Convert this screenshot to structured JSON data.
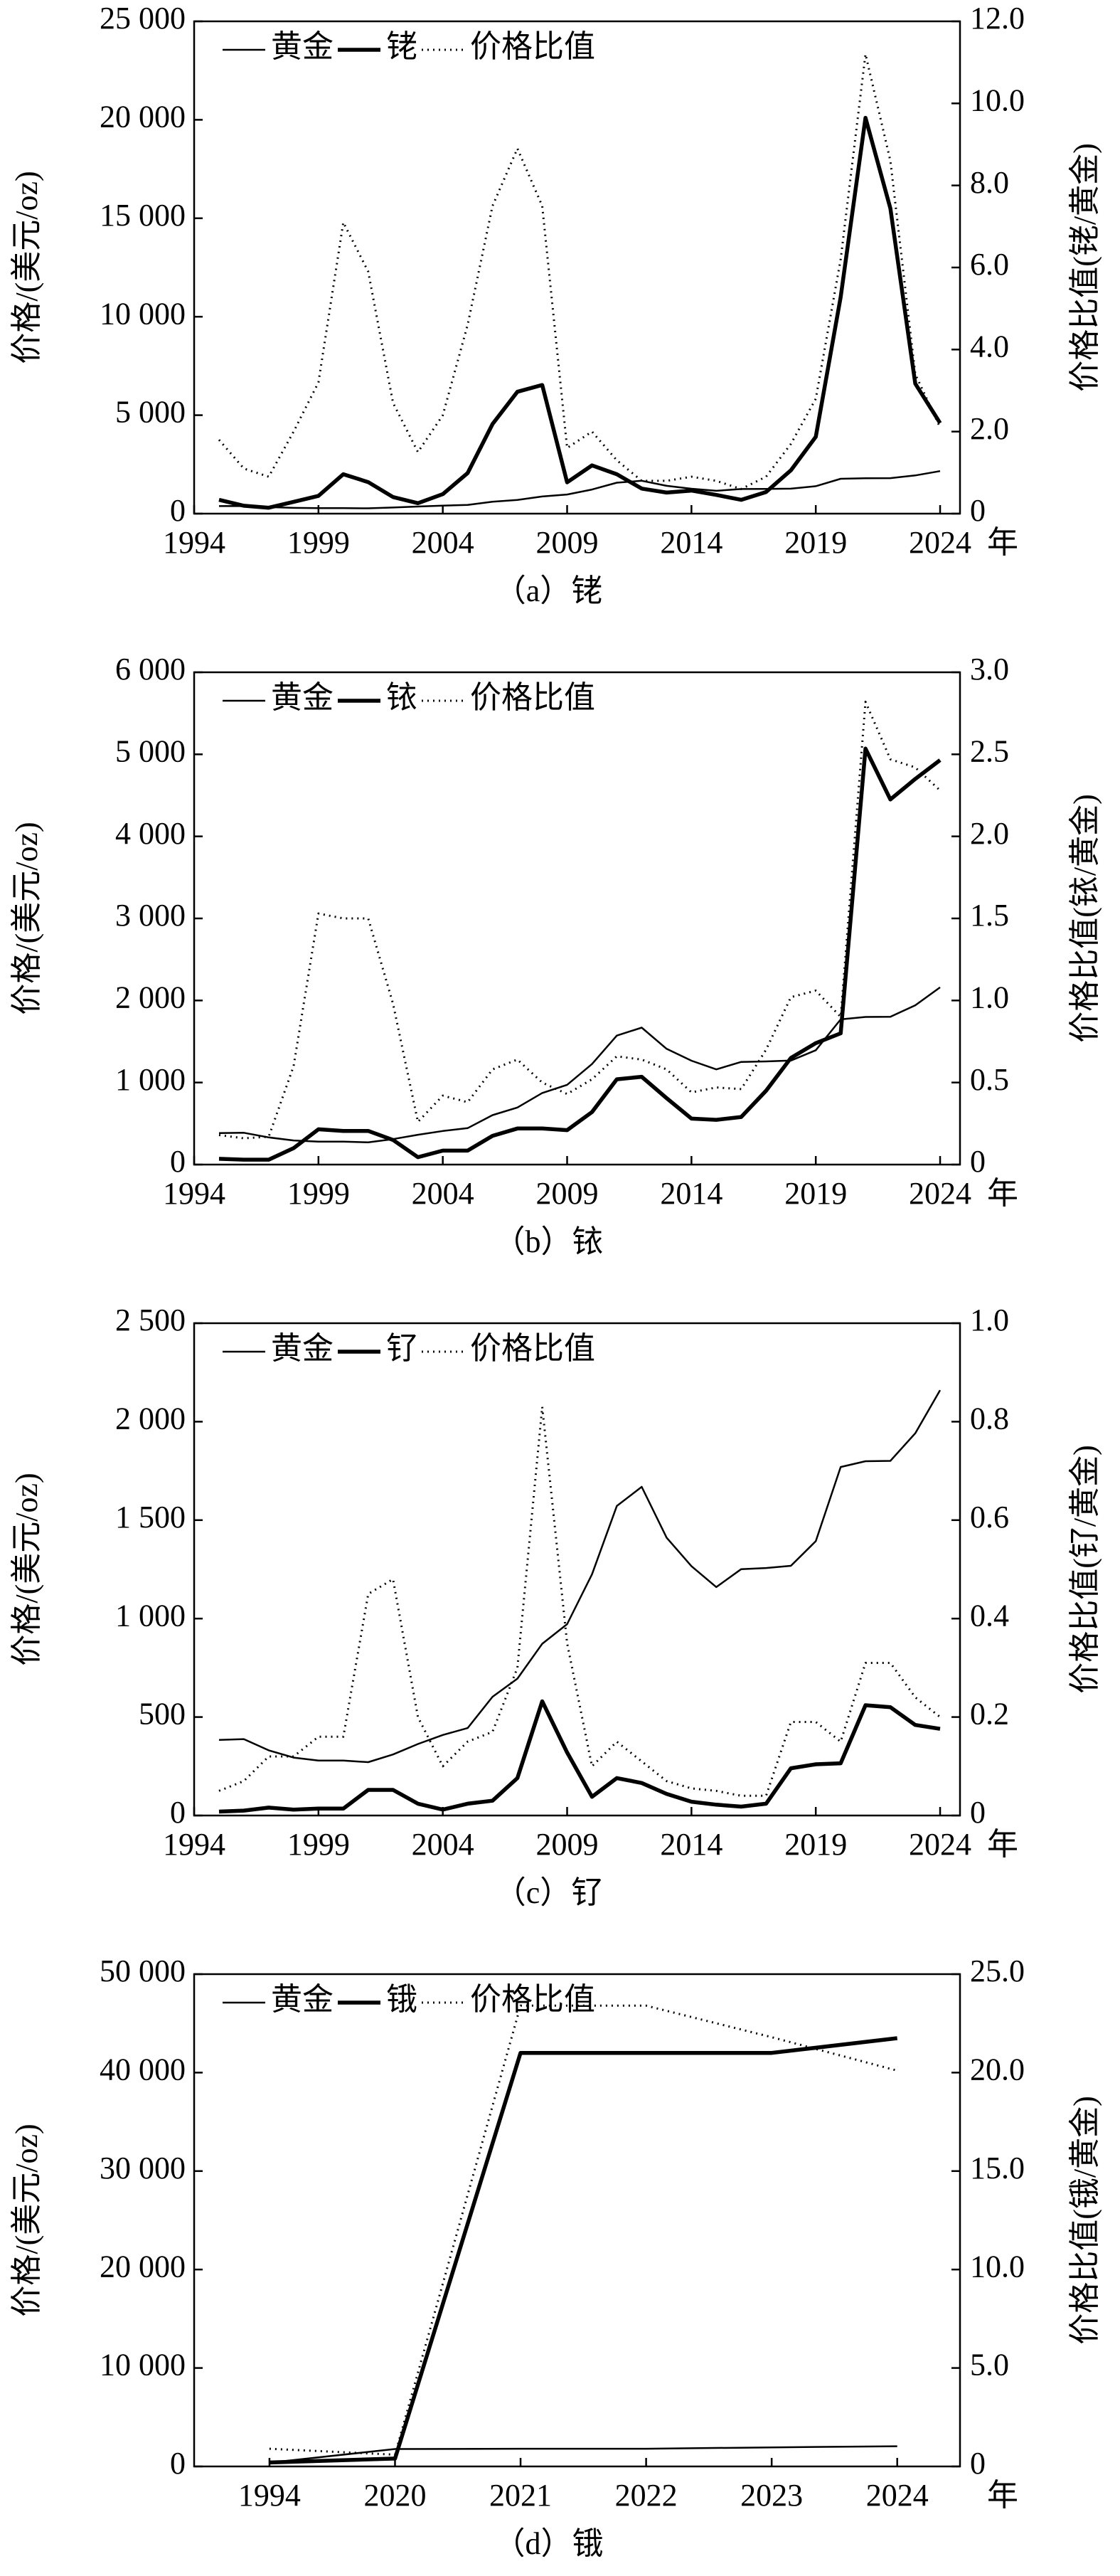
{
  "chart_data": [
    {
      "type": "line",
      "caption": "（a）铑",
      "xlabel": "年",
      "ylabel": "价格/(美元/oz)",
      "y2label": "价格比值(铑/黄金)",
      "x": [
        1995,
        1996,
        1997,
        1998,
        1999,
        2000,
        2001,
        2002,
        2003,
        2004,
        2005,
        2006,
        2007,
        2008,
        2009,
        2010,
        2011,
        2012,
        2013,
        2014,
        2015,
        2016,
        2017,
        2018,
        2019,
        2020,
        2021,
        2022,
        2023,
        2024
      ],
      "xlim": [
        1994,
        2024.8
      ],
      "xticks": [
        1994,
        1999,
        2004,
        2009,
        2014,
        2019,
        2024
      ],
      "ylim": [
        0,
        25000
      ],
      "yticks": [
        0,
        {
          "value": 5000,
          "label": "5 000"
        },
        {
          "value": 10000,
          "label": "10 000"
        },
        {
          "value": 15000,
          "label": "15 000"
        },
        {
          "value": 20000,
          "label": "20 000"
        },
        {
          "value": 25000,
          "label": "25 000"
        }
      ],
      "y2lim": [
        0,
        12
      ],
      "y2ticks": [
        0,
        {
          "value": 2,
          "label": "2.0"
        },
        {
          "value": 4,
          "label": "4.0"
        },
        {
          "value": 6,
          "label": "6.0"
        },
        {
          "value": 8,
          "label": "8.0"
        },
        {
          "value": 10,
          "label": "10.0"
        },
        {
          "value": 12,
          "label": "12.0"
        }
      ],
      "series": [
        {
          "name": "黄金",
          "color": "#000000",
          "style": "thin",
          "values": [
            384,
            388,
            331,
            294,
            279,
            279,
            271,
            310,
            363,
            409,
            444,
            603,
            695,
            872,
            972,
            1225,
            1572,
            1669,
            1411,
            1266,
            1160,
            1251,
            1257,
            1268,
            1393,
            1770,
            1799,
            1801,
            1941,
            2160
          ]
        },
        {
          "name": "铑",
          "color": "#000000",
          "style": "thick",
          "values": [
            700,
            400,
            300,
            600,
            900,
            2000,
            1600,
            840,
            530,
            990,
            2060,
            4550,
            6190,
            6530,
            1590,
            2450,
            2000,
            1270,
            1070,
            1170,
            950,
            700,
            1100,
            2200,
            3900,
            11000,
            20100,
            15500,
            6600,
            4600
          ]
        },
        {
          "name": "价格比值",
          "color": "#000000",
          "style": "dotted",
          "axis": "y2",
          "values": [
            1.8,
            1.1,
            0.9,
            2.0,
            3.2,
            7.1,
            5.9,
            2.7,
            1.5,
            2.4,
            4.6,
            7.5,
            8.9,
            7.5,
            1.6,
            2.0,
            1.3,
            0.8,
            0.8,
            0.9,
            0.8,
            0.6,
            0.9,
            1.7,
            2.8,
            6.2,
            11.2,
            8.6,
            3.4,
            2.1
          ]
        }
      ]
    },
    {
      "type": "line",
      "caption": "（b）铱",
      "xlabel": "年",
      "ylabel": "价格/(美元/oz)",
      "y2label": "价格比值(铱/黄金)",
      "x": [
        1995,
        1996,
        1997,
        1998,
        1999,
        2000,
        2001,
        2002,
        2003,
        2004,
        2005,
        2006,
        2007,
        2008,
        2009,
        2010,
        2011,
        2012,
        2013,
        2014,
        2015,
        2016,
        2017,
        2018,
        2019,
        2020,
        2021,
        2022,
        2023,
        2024
      ],
      "xlim": [
        1994,
        2024.8
      ],
      "xticks": [
        1994,
        1999,
        2004,
        2009,
        2014,
        2019,
        2024
      ],
      "ylim": [
        0,
        6000
      ],
      "yticks": [
        0,
        {
          "value": 1000,
          "label": "1 000"
        },
        {
          "value": 2000,
          "label": "2 000"
        },
        {
          "value": 3000,
          "label": "3 000"
        },
        {
          "value": 4000,
          "label": "4 000"
        },
        {
          "value": 5000,
          "label": "5 000"
        },
        {
          "value": 6000,
          "label": "6 000"
        }
      ],
      "y2lim": [
        0,
        3
      ],
      "y2ticks": [
        0,
        {
          "value": 0.5,
          "label": "0.5"
        },
        {
          "value": 1,
          "label": "1.0"
        },
        {
          "value": 1.5,
          "label": "1.5"
        },
        {
          "value": 2,
          "label": "2.0"
        },
        {
          "value": 2.5,
          "label": "2.5"
        },
        {
          "value": 3,
          "label": "3.0"
        }
      ],
      "series": [
        {
          "name": "黄金",
          "color": "#000000",
          "style": "thin",
          "values": [
            384,
            388,
            331,
            294,
            279,
            279,
            271,
            310,
            363,
            409,
            444,
            603,
            695,
            872,
            972,
            1225,
            1572,
            1669,
            1411,
            1266,
            1160,
            1251,
            1257,
            1268,
            1393,
            1770,
            1799,
            1801,
            1941,
            2160
          ]
        },
        {
          "name": "铱",
          "color": "#000000",
          "style": "thick",
          "values": [
            70,
            60,
            60,
            200,
            430,
            410,
            410,
            300,
            90,
            170,
            170,
            350,
            440,
            440,
            420,
            640,
            1040,
            1070,
            810,
            560,
            545,
            580,
            900,
            1300,
            1480,
            1600,
            5070,
            4450,
            4700,
            4930
          ]
        },
        {
          "name": "价格比值",
          "color": "#000000",
          "style": "dotted",
          "axis": "y2",
          "values": [
            0.18,
            0.16,
            0.17,
            0.6,
            1.53,
            1.5,
            1.5,
            0.98,
            0.26,
            0.42,
            0.38,
            0.58,
            0.64,
            0.5,
            0.43,
            0.52,
            0.66,
            0.64,
            0.58,
            0.44,
            0.47,
            0.46,
            0.7,
            1.02,
            1.06,
            0.9,
            2.82,
            2.47,
            2.42,
            2.28
          ]
        }
      ]
    },
    {
      "type": "line",
      "caption": "（c）钌",
      "xlabel": "年",
      "ylabel": "价格/(美元/oz)",
      "y2label": "价格比值(钌/黄金)",
      "x": [
        1995,
        1996,
        1997,
        1998,
        1999,
        2000,
        2001,
        2002,
        2003,
        2004,
        2005,
        2006,
        2007,
        2008,
        2009,
        2010,
        2011,
        2012,
        2013,
        2014,
        2015,
        2016,
        2017,
        2018,
        2019,
        2020,
        2021,
        2022,
        2023,
        2024
      ],
      "xlim": [
        1994,
        2024.8
      ],
      "xticks": [
        1994,
        1999,
        2004,
        2009,
        2014,
        2019,
        2024
      ],
      "ylim": [
        0,
        2500
      ],
      "yticks": [
        0,
        500,
        {
          "value": 1000,
          "label": "1 000"
        },
        {
          "value": 1500,
          "label": "1 500"
        },
        {
          "value": 2000,
          "label": "2 000"
        },
        {
          "value": 2500,
          "label": "2 500"
        }
      ],
      "y2lim": [
        0,
        1
      ],
      "y2ticks": [
        0,
        {
          "value": 0.2,
          "label": "0.2"
        },
        {
          "value": 0.4,
          "label": "0.4"
        },
        {
          "value": 0.6,
          "label": "0.6"
        },
        {
          "value": 0.8,
          "label": "0.8"
        },
        {
          "value": 1,
          "label": "1.0"
        }
      ],
      "series": [
        {
          "name": "黄金",
          "color": "#000000",
          "style": "thin",
          "values": [
            384,
            388,
            331,
            294,
            279,
            279,
            271,
            310,
            363,
            409,
            444,
            603,
            695,
            872,
            972,
            1225,
            1572,
            1669,
            1411,
            1266,
            1160,
            1251,
            1257,
            1268,
            1393,
            1770,
            1799,
            1801,
            1941,
            2160
          ]
        },
        {
          "name": "钌",
          "color": "#000000",
          "style": "thick",
          "values": [
            20,
            25,
            40,
            30,
            35,
            35,
            130,
            130,
            60,
            30,
            60,
            75,
            190,
            580,
            320,
            95,
            190,
            165,
            110,
            70,
            55,
            45,
            60,
            240,
            260,
            265,
            560,
            550,
            460,
            440
          ]
        },
        {
          "name": "价格比值",
          "color": "#000000",
          "style": "dotted",
          "axis": "y2",
          "values": [
            0.05,
            0.07,
            0.12,
            0.12,
            0.16,
            0.16,
            0.45,
            0.48,
            0.2,
            0.1,
            0.15,
            0.17,
            0.3,
            0.83,
            0.35,
            0.1,
            0.15,
            0.11,
            0.07,
            0.055,
            0.05,
            0.04,
            0.04,
            0.19,
            0.19,
            0.15,
            0.31,
            0.31,
            0.24,
            0.2
          ]
        }
      ]
    },
    {
      "type": "line",
      "caption": "（d）锇",
      "xlabel": "年",
      "ylabel": "价格/(美元/oz)",
      "y2label": "价格比值(锇/黄金)",
      "categories": [
        "1994",
        "2020",
        "2021",
        "2022",
        "2023",
        "2024"
      ],
      "ylim": [
        0,
        50000
      ],
      "yticks": [
        0,
        {
          "value": 10000,
          "label": "10 000"
        },
        {
          "value": 20000,
          "label": "20 000"
        },
        {
          "value": 30000,
          "label": "30 000"
        },
        {
          "value": 40000,
          "label": "40 000"
        },
        {
          "value": 50000,
          "label": "50 000"
        }
      ],
      "y2lim": [
        0,
        25
      ],
      "y2ticks": [
        0,
        {
          "value": 5,
          "label": "5.0"
        },
        {
          "value": 10,
          "label": "10.0"
        },
        {
          "value": 15,
          "label": "15.0"
        },
        {
          "value": 20,
          "label": "20.0"
        },
        {
          "value": 25,
          "label": "25.0"
        }
      ],
      "series": [
        {
          "name": "黄金",
          "color": "#000000",
          "style": "thin",
          "values": [
            380,
            1770,
            1800,
            1800,
            1940,
            2050
          ]
        },
        {
          "name": "锇",
          "color": "#000000",
          "style": "thick",
          "values": [
            400,
            800,
            42000,
            42000,
            42000,
            43500
          ]
        },
        {
          "name": "价格比值",
          "color": "#000000",
          "style": "dotted",
          "axis": "y2",
          "values": [
            0.9,
            0.6,
            23.4,
            23.4,
            21.8,
            20.1
          ]
        }
      ]
    }
  ]
}
